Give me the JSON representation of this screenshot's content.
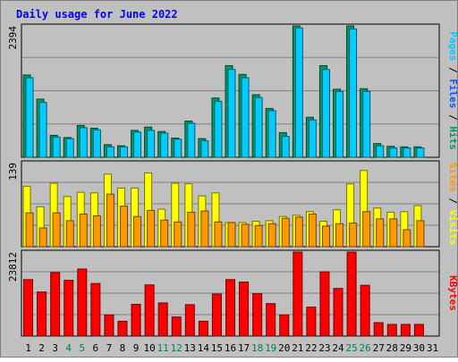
{
  "chart_data": {
    "type": "bar",
    "title": "Daily usage for June 2022",
    "categories": [
      "1",
      "2",
      "3",
      "4",
      "5",
      "6",
      "7",
      "8",
      "9",
      "10",
      "11",
      "12",
      "13",
      "14",
      "15",
      "16",
      "17",
      "18",
      "19",
      "20",
      "21",
      "22",
      "23",
      "24",
      "25",
      "26",
      "27",
      "28",
      "29",
      "30",
      "31"
    ],
    "weekend_days": [
      "4",
      "5",
      "11",
      "12",
      "18",
      "19",
      "25",
      "26"
    ],
    "panels": [
      {
        "name": "pages-files-hits",
        "ymax": 2394,
        "ymax_label": "2394",
        "axis_label_parts": [
          {
            "text": "Pages",
            "color": "#00ccff"
          },
          {
            "text": " / ",
            "color": "#000000"
          },
          {
            "text": "Files",
            "color": "#0055ff"
          },
          {
            "text": " / ",
            "color": "#000000"
          },
          {
            "text": "Hits",
            "color": "#009966"
          }
        ],
        "series": [
          {
            "name": "Hits",
            "color": "#009966",
            "values": [
              1500,
              1060,
              400,
              360,
              580,
              530,
              230,
              210,
              490,
              550,
              470,
              350,
              660,
              340,
              1080,
              1670,
              1510,
              1140,
              890,
              450,
              2430,
              730,
              1670,
              1240,
              2400,
              1250,
              250,
              200,
              190,
              190,
              null
            ]
          },
          {
            "name": "Files",
            "color": "#00ccff",
            "values": [
              1450,
              1000,
              370,
              340,
              540,
              500,
              190,
              190,
              460,
              490,
              440,
              330,
              620,
              300,
              1020,
              1600,
              1450,
              1090,
              850,
              380,
              2360,
              680,
              1600,
              1200,
              2340,
              1200,
              210,
              170,
              170,
              170,
              null
            ]
          }
        ]
      },
      {
        "name": "visits-sites",
        "ymax": 139,
        "ymax_label": "139",
        "axis_label_parts": [
          {
            "text": "Sites",
            "color": "#ff9900"
          },
          {
            "text": " / ",
            "color": "#000000"
          },
          {
            "text": "Visits",
            "color": "#ffff00"
          }
        ],
        "series": [
          {
            "name": "Visits",
            "color": "#ffff00",
            "values": [
              100,
              66,
              105,
              83,
              90,
              89,
              120,
              97,
              97,
              122,
              62,
              105,
              104,
              84,
              89,
              40,
              40,
              42,
              43,
              50,
              52,
              58,
              42,
              61,
              104,
              126,
              64,
              57,
              58,
              68,
              null
            ]
          },
          {
            "name": "Sites",
            "color": "#ff9900",
            "values": [
              56,
              31,
              56,
              43,
              54,
              51,
              87,
              67,
              50,
              60,
              44,
              41,
              57,
              59,
              41,
              40,
              37,
              35,
              38,
              47,
              49,
              54,
              34,
              38,
              39,
              58,
              46,
              46,
              28,
              43,
              null
            ]
          }
        ]
      },
      {
        "name": "kbytes",
        "ymax": 23812,
        "ymax_label": "23812",
        "axis_label_parts": [
          {
            "text": "KBytes",
            "color": "#ff0000"
          }
        ],
        "series": [
          {
            "name": "KBytes",
            "color": "#ff0000",
            "values": [
              16000,
              12500,
              18000,
              15800,
              19000,
              14900,
              6000,
              4200,
              9000,
              14500,
              9400,
              5400,
              8900,
              4200,
              11900,
              16000,
              15300,
              12000,
              9200,
              6000,
              23812,
              8200,
              18200,
              13500,
              23812,
              14400,
              3800,
              3300,
              3300,
              3300,
              null
            ]
          }
        ]
      }
    ]
  }
}
